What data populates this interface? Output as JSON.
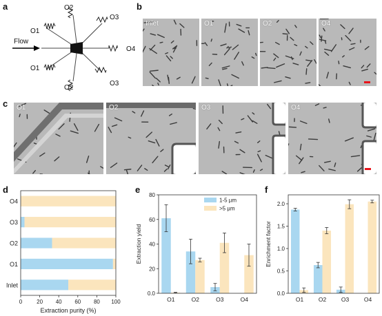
{
  "panels": {
    "a": "a",
    "b": "b",
    "c": "c",
    "d": "d",
    "e": "e",
    "f": "f"
  },
  "diagram": {
    "flow": "Flow",
    "outlets": {
      "O1_top": "O1",
      "O2_top": "O2",
      "O3_top": "O3",
      "O4": "O4",
      "O1_bottom": "O1",
      "O2_bottom": "O2",
      "O3_bottom": "O3"
    }
  },
  "micrographs_b": [
    "Inlet",
    "O1",
    "O2",
    "O4"
  ],
  "micrographs_c": [
    "O1",
    "O2",
    "O3",
    "O4"
  ],
  "colors": {
    "blue": "#a9d7f0",
    "beige": "#fbe5bd",
    "scalebar": "#e8141b"
  },
  "chart_data": [
    {
      "type": "bar",
      "orientation": "horizontal",
      "stacked": true,
      "categories": [
        "O4",
        "O3",
        "O2",
        "O1",
        "Inlet"
      ],
      "series": [
        {
          "color": "#a9d7f0",
          "values": [
            0,
            4,
            33,
            97,
            50
          ]
        },
        {
          "color": "#fbe5bd",
          "values": [
            100,
            96,
            67,
            3,
            50
          ]
        }
      ],
      "xlabel": "Extraction purity (%)",
      "xlim": [
        0,
        100
      ],
      "xticks": [
        "0",
        "20",
        "40",
        "60",
        "80",
        "100"
      ]
    },
    {
      "type": "bar",
      "categories": [
        "O1",
        "O2",
        "O3",
        "O4"
      ],
      "series": [
        {
          "name": "1-5 µm",
          "color": "#a9d7f0",
          "values": [
            61,
            34,
            5,
            0
          ],
          "errors": [
            11,
            10,
            3,
            0
          ]
        },
        {
          "name": ">5 µm",
          "color": "#fbe5bd",
          "values": [
            0.5,
            27,
            41,
            31
          ],
          "errors": [
            0.3,
            1.5,
            8,
            9
          ]
        }
      ],
      "ylabel": "Extraction yield",
      "ylim": [
        0,
        80
      ],
      "yticks": [
        "0.0",
        "20",
        "40",
        "60",
        "80"
      ],
      "legend": "top-right"
    },
    {
      "type": "bar",
      "categories": [
        "O1",
        "O2",
        "O3",
        "O4"
      ],
      "series": [
        {
          "color": "#a9d7f0",
          "values": [
            1.87,
            0.63,
            0.08,
            0
          ],
          "errors": [
            0.03,
            0.06,
            0.06,
            0
          ]
        },
        {
          "color": "#fbe5bd",
          "values": [
            0.07,
            1.4,
            1.99,
            2.05
          ],
          "errors": [
            0.05,
            0.07,
            0.1,
            0.03
          ]
        }
      ],
      "ylabel": "Enrichment factor",
      "ylim": [
        0,
        2.2
      ],
      "yticks": [
        "0.0",
        "0.5",
        "1.0",
        "1.5",
        "2.0"
      ]
    }
  ]
}
